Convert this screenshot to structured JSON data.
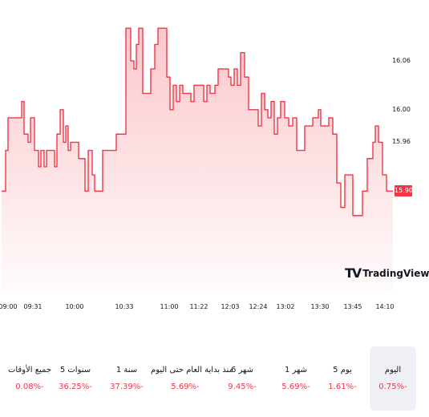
{
  "chart_data": {
    "type": "area",
    "color": "#f23645",
    "current_price": "15.90",
    "y_ticks": [
      "16.06",
      "16.00",
      "15.96"
    ],
    "x_ticks": [
      "09:00",
      "09:31",
      "10:00",
      "10:33",
      "11:00",
      "11:22",
      "12:03",
      "12:24",
      "13:02",
      "13:30",
      "13:45",
      "14:10"
    ],
    "ylim": [
      15.8,
      16.11
    ],
    "points": [
      [
        2,
        15.9
      ],
      [
        7,
        15.95
      ],
      [
        10,
        15.99
      ],
      [
        23,
        15.99
      ],
      [
        27,
        16.01
      ],
      [
        30,
        15.97
      ],
      [
        35,
        15.96
      ],
      [
        38,
        15.99
      ],
      [
        43,
        15.95
      ],
      [
        48,
        15.93
      ],
      [
        51,
        15.95
      ],
      [
        55,
        15.93
      ],
      [
        58,
        15.95
      ],
      [
        65,
        15.95
      ],
      [
        68,
        15.93
      ],
      [
        71,
        15.97
      ],
      [
        75,
        16.0
      ],
      [
        79,
        15.96
      ],
      [
        82,
        15.98
      ],
      [
        85,
        15.95
      ],
      [
        88,
        15.96
      ],
      [
        95,
        15.96
      ],
      [
        98,
        15.94
      ],
      [
        102,
        15.94
      ],
      [
        106,
        15.9
      ],
      [
        110,
        15.95
      ],
      [
        115,
        15.92
      ],
      [
        118,
        15.9
      ],
      [
        125,
        15.9
      ],
      [
        128,
        15.95
      ],
      [
        140,
        15.95
      ],
      [
        145,
        15.97
      ],
      [
        150,
        15.97
      ],
      [
        157,
        16.1
      ],
      [
        163,
        16.06
      ],
      [
        167,
        16.05
      ],
      [
        170,
        16.08
      ],
      [
        173,
        16.1
      ],
      [
        178,
        16.02
      ],
      [
        184,
        16.02
      ],
      [
        188,
        16.05
      ],
      [
        193,
        16.08
      ],
      [
        197,
        16.1
      ],
      [
        204,
        16.1
      ],
      [
        208,
        16.04
      ],
      [
        212,
        16.0
      ],
      [
        216,
        16.03
      ],
      [
        220,
        16.01
      ],
      [
        224,
        16.03
      ],
      [
        228,
        16.02
      ],
      [
        234,
        16.02
      ],
      [
        238,
        16.01
      ],
      [
        242,
        16.03
      ],
      [
        250,
        16.03
      ],
      [
        254,
        16.01
      ],
      [
        258,
        16.03
      ],
      [
        262,
        16.02
      ],
      [
        268,
        16.03
      ],
      [
        272,
        16.05
      ],
      [
        285,
        16.04
      ],
      [
        288,
        16.03
      ],
      [
        292,
        16.05
      ],
      [
        296,
        16.03
      ],
      [
        300,
        16.07
      ],
      [
        305,
        16.04
      ],
      [
        310,
        16.0
      ],
      [
        318,
        16.0
      ],
      [
        322,
        15.98
      ],
      [
        326,
        16.02
      ],
      [
        330,
        16.0
      ],
      [
        334,
        15.99
      ],
      [
        338,
        16.01
      ],
      [
        342,
        15.97
      ],
      [
        346,
        15.99
      ],
      [
        350,
        16.01
      ],
      [
        355,
        15.99
      ],
      [
        360,
        15.98
      ],
      [
        365,
        15.99
      ],
      [
        370,
        15.95
      ],
      [
        375,
        15.95
      ],
      [
        380,
        15.98
      ],
      [
        385,
        15.98
      ],
      [
        390,
        15.99
      ],
      [
        393,
        15.99
      ],
      [
        397,
        16.0
      ],
      [
        400,
        15.98
      ],
      [
        405,
        15.98
      ],
      [
        410,
        15.99
      ],
      [
        415,
        15.97
      ],
      [
        420,
        15.91
      ],
      [
        425,
        15.88
      ],
      [
        430,
        15.92
      ],
      [
        436,
        15.92
      ],
      [
        440,
        15.87
      ],
      [
        445,
        15.87
      ],
      [
        452,
        15.9
      ],
      [
        458,
        15.94
      ],
      [
        465,
        15.96
      ],
      [
        468,
        15.98
      ],
      [
        472,
        15.96
      ],
      [
        477,
        15.92
      ],
      [
        482,
        15.9
      ],
      [
        490,
        15.9
      ]
    ]
  },
  "watermark": {
    "brand_text": "TradingView",
    "mark_text": "TV"
  },
  "periods": [
    {
      "label": "اليوم",
      "change": "0.75%-",
      "selected": true
    },
    {
      "label": "5 يوم",
      "change": "1.61%-"
    },
    {
      "label": "1 شهر",
      "change": "5.69%-"
    },
    {
      "label": "6 شهر",
      "change": "9.45%-"
    },
    {
      "label": "منذ بداية العام حتى اليوم",
      "change": "5.69%-"
    },
    {
      "label": "1 سنة",
      "change": "37.39%-"
    },
    {
      "label": "5 سنوات",
      "change": "36.25%-"
    },
    {
      "label": "جميع الأوقات",
      "change": "0.08%-"
    }
  ]
}
